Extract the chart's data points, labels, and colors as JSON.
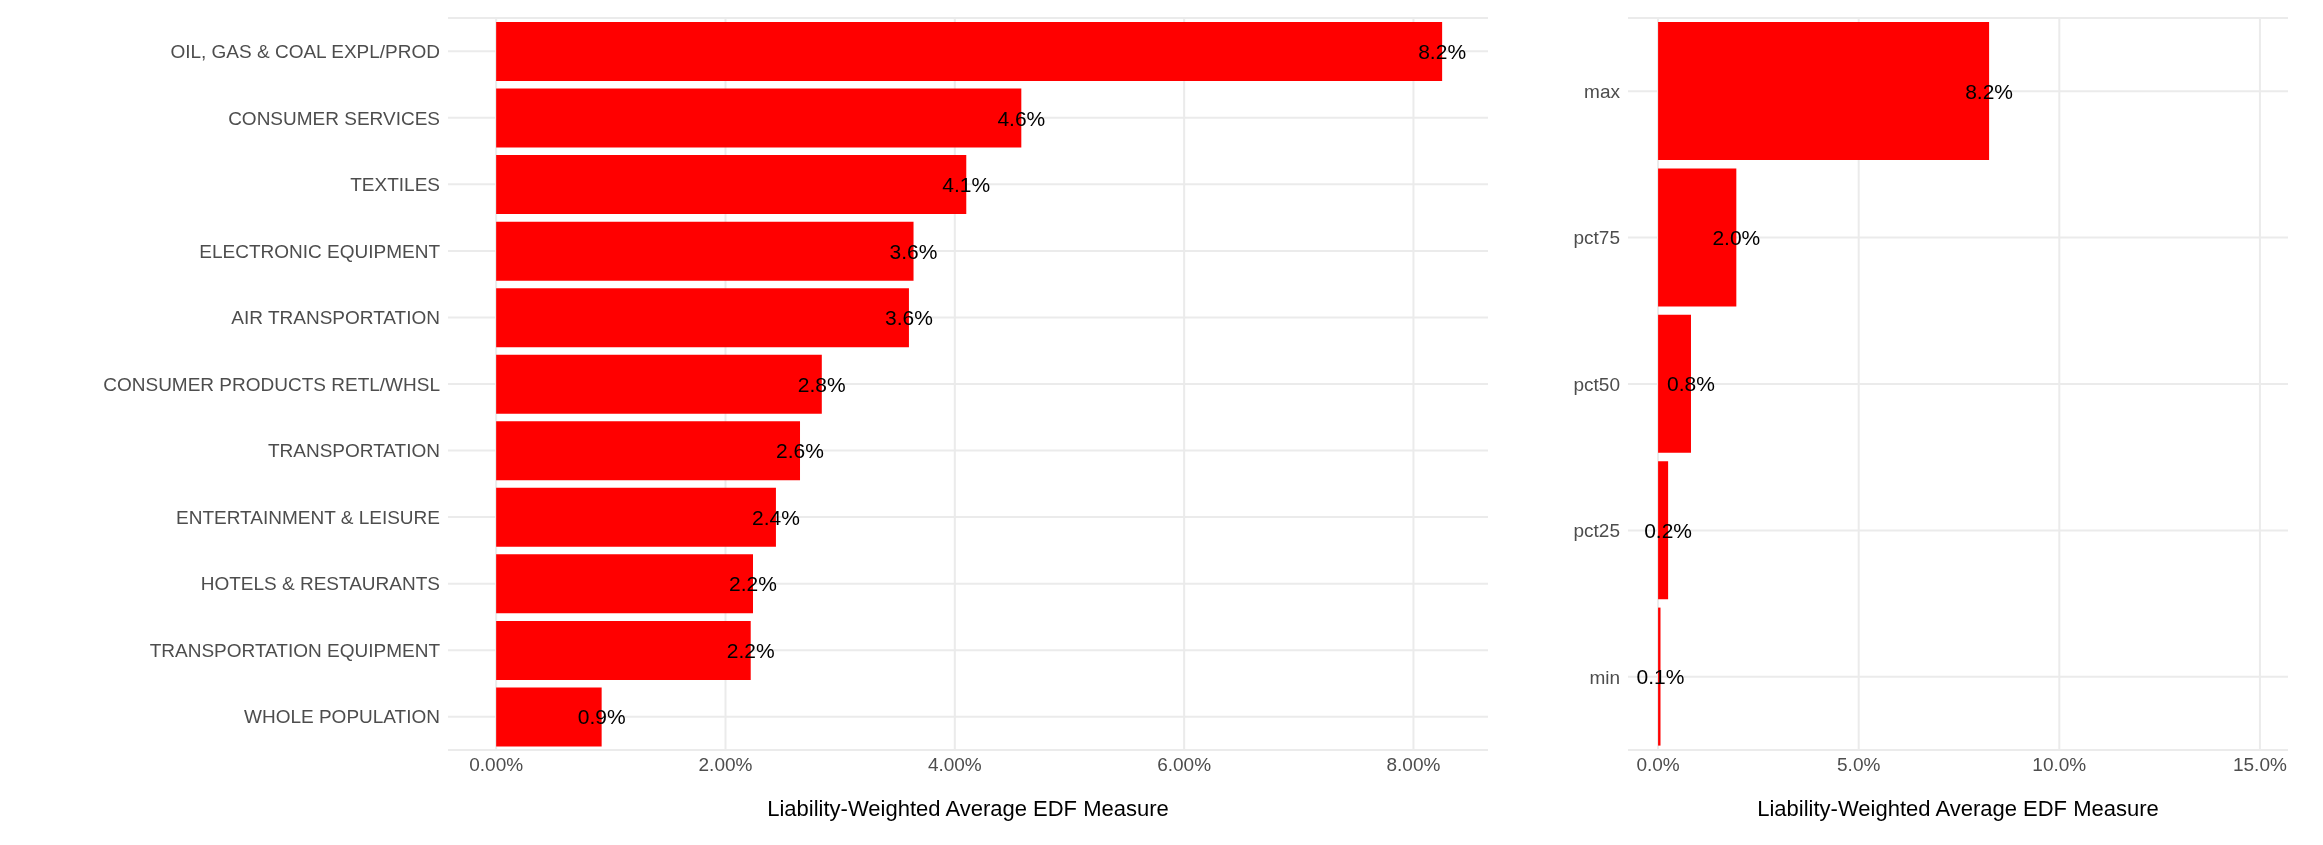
{
  "chart_data": [
    {
      "type": "bar",
      "orientation": "horizontal",
      "categories": [
        "OIL, GAS & COAL EXPL/PROD",
        "CONSUMER SERVICES",
        "TEXTILES",
        "ELECTRONIC EQUIPMENT",
        "AIR TRANSPORTATION",
        "CONSUMER PRODUCTS RETL/WHSL",
        "TRANSPORTATION",
        "ENTERTAINMENT & LEISURE",
        "HOTELS & RESTAURANTS",
        "TRANSPORTATION EQUIPMENT",
        "WHOLE POPULATION"
      ],
      "values": [
        8.25,
        4.58,
        4.1,
        3.64,
        3.6,
        2.84,
        2.65,
        2.44,
        2.24,
        2.22,
        0.92
      ],
      "value_labels": [
        "8.2%",
        "4.6%",
        "4.1%",
        "3.6%",
        "3.6%",
        "2.8%",
        "2.6%",
        "2.4%",
        "2.2%",
        "2.2%",
        "0.9%"
      ],
      "color": "#ff0000",
      "xlabel": "Liability-Weighted Average EDF Measure",
      "xlim": [
        -0.42,
        8.65
      ],
      "xticks": [
        {
          "value": 0,
          "label": "0.00%"
        },
        {
          "value": 2,
          "label": "2.00%"
        },
        {
          "value": 4,
          "label": "4.00%"
        },
        {
          "value": 6,
          "label": "6.00%"
        },
        {
          "value": 8,
          "label": "8.00%"
        }
      ],
      "grid": true
    },
    {
      "type": "bar",
      "orientation": "horizontal",
      "categories": [
        "max",
        "pct75",
        "pct50",
        "pct25",
        "min"
      ],
      "values": [
        8.25,
        1.95,
        0.82,
        0.25,
        0.06
      ],
      "value_labels": [
        "8.2%",
        "2.0%",
        "0.8%",
        "0.2%",
        "0.1%"
      ],
      "color": "#ff0000",
      "xlabel": "Liability-Weighted Average EDF Measure",
      "xlim": [
        -0.75,
        15.7
      ],
      "xticks": [
        {
          "value": 0,
          "label": "0.0%"
        },
        {
          "value": 5,
          "label": "5.0%"
        },
        {
          "value": 10,
          "label": "10.0%"
        },
        {
          "value": 15,
          "label": "15.0%"
        }
      ],
      "grid": true
    }
  ]
}
